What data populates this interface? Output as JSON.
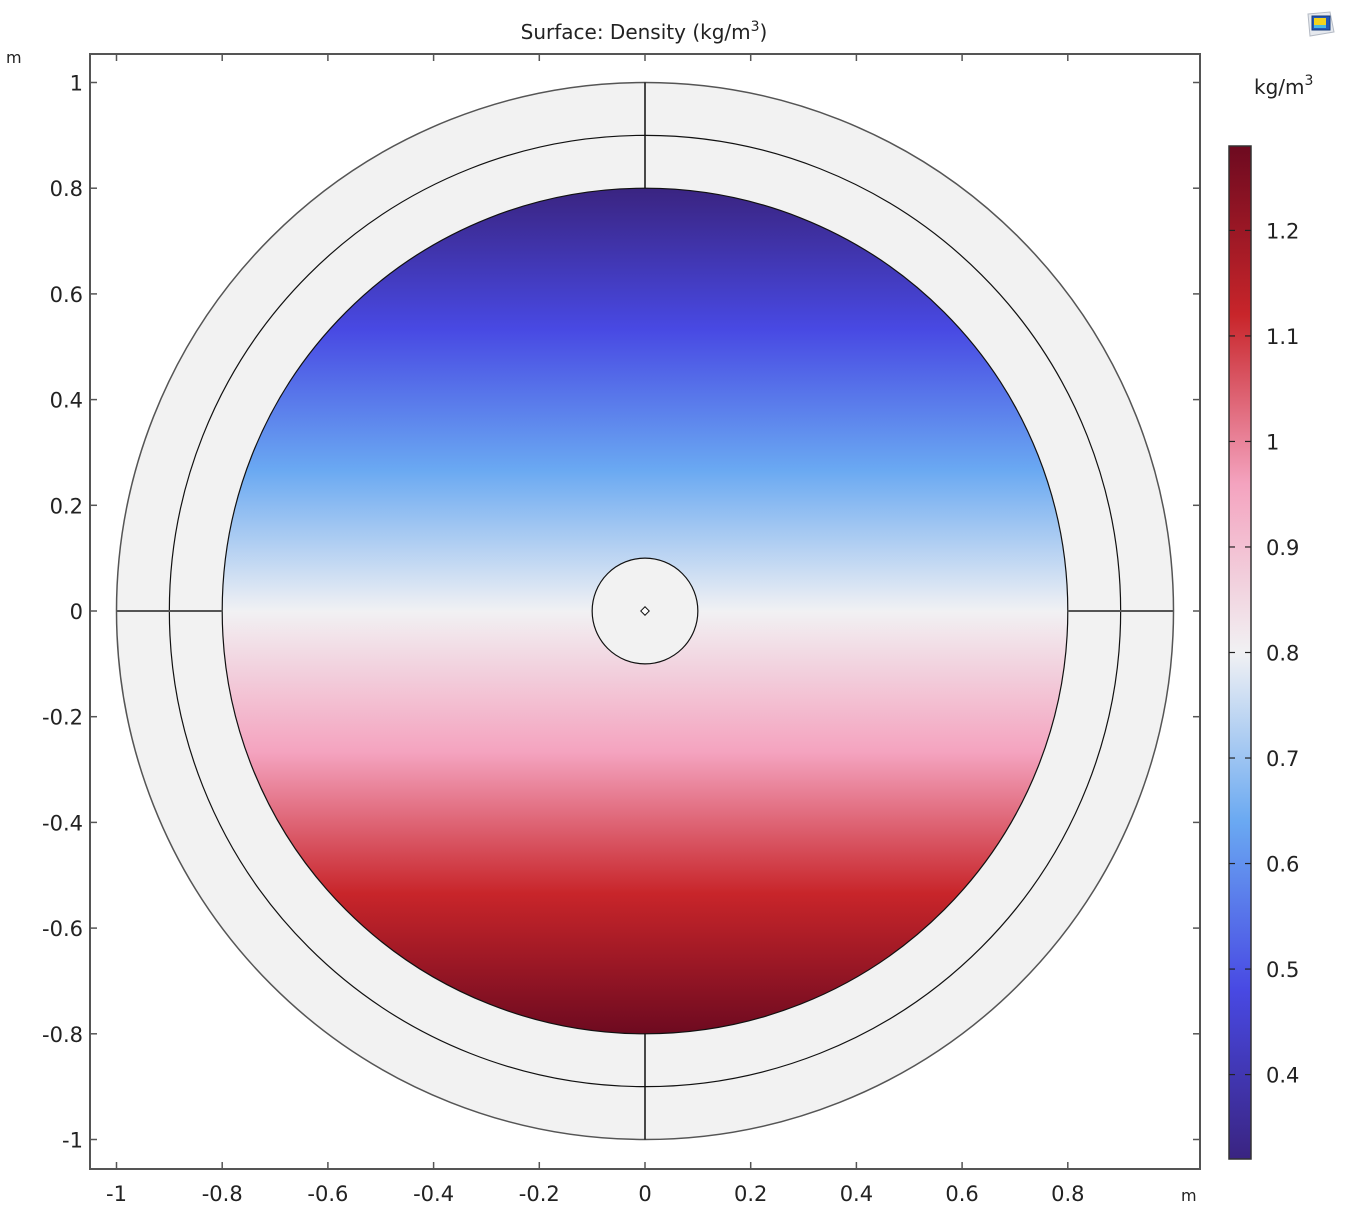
{
  "plot": {
    "title_prefix": "Surface: Density (kg/m",
    "title_sup": "3",
    "title_suffix": ")",
    "x_unit": "m",
    "y_unit": "m",
    "colorbar_unit_prefix": "kg/m",
    "colorbar_unit_sup": "3",
    "view_button_icon": "3d-view-icon"
  },
  "chart_data": {
    "type": "heatmap",
    "xlim": [
      -1.05,
      1.05
    ],
    "ylim": [
      -1.05,
      1.05
    ],
    "x_ticks": [
      -1,
      -0.8,
      -0.6,
      -0.4,
      -0.2,
      0,
      0.2,
      0.4,
      0.6,
      0.8
    ],
    "x_tick_labels": [
      "-1",
      "-0.8",
      "-0.6",
      "-0.4",
      "-0.2",
      "0",
      "0.2",
      "0.4",
      "0.6",
      "0.8"
    ],
    "y_ticks": [
      1,
      0.8,
      0.6,
      0.4,
      0.2,
      0,
      -0.2,
      -0.4,
      -0.6,
      -0.8,
      -1
    ],
    "y_tick_labels": [
      "1",
      "0.8",
      "0.6",
      "0.4",
      "0.2",
      "0",
      "-0.2",
      "-0.4",
      "-0.6",
      "-0.8",
      "-1"
    ],
    "geometry": {
      "outer_radius": 1.0,
      "middle_radius": 0.9,
      "domain_radius": 0.8,
      "inner_radius": 0.1
    },
    "colorbar": {
      "range": [
        0.32,
        1.28
      ],
      "ticks": [
        1.2,
        1.1,
        1,
        0.9,
        0.8,
        0.7,
        0.6,
        0.5,
        0.4
      ],
      "tick_labels": [
        "1.2",
        "1.1",
        "1",
        "0.9",
        "0.8",
        "0.7",
        "0.6",
        "0.5",
        "0.4"
      ],
      "colors": [
        "#3a2481",
        "#4849e3",
        "#6aa9f2",
        "#f1f1f3",
        "#f4a3bf",
        "#c8252a",
        "#6d0a20"
      ]
    },
    "field": {
      "min": 0.32,
      "max": 1.28,
      "variation": "vertical, low at top, high at bottom"
    },
    "annulus_fill": "#f2f2f2"
  }
}
